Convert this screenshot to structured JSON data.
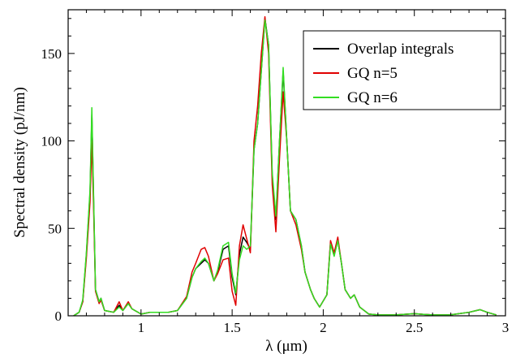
{
  "chart_data": {
    "type": "line",
    "xlabel": "λ (μm)",
    "ylabel": "Spectral density (pJ/nm)",
    "xlim": [
      0.6,
      3.0
    ],
    "ylim": [
      0,
      175
    ],
    "xticks": [
      1,
      1.5,
      2,
      2.5,
      3
    ],
    "xtick_labels": [
      "1",
      "1.5",
      "2",
      "2.5",
      "3"
    ],
    "yticks": [
      0,
      50,
      100,
      150
    ],
    "ytick_labels": [
      "0",
      "50",
      "100",
      "150"
    ],
    "grid": false,
    "legend_position": "top-right",
    "series": [
      {
        "name": "Overlap integrals",
        "color": "#000000",
        "points": [
          [
            0.63,
            0
          ],
          [
            0.66,
            2
          ],
          [
            0.68,
            8
          ],
          [
            0.7,
            35
          ],
          [
            0.72,
            70
          ],
          [
            0.73,
            115
          ],
          [
            0.74,
            65
          ],
          [
            0.75,
            15
          ],
          [
            0.77,
            8
          ],
          [
            0.78,
            10
          ],
          [
            0.8,
            3
          ],
          [
            0.85,
            2
          ],
          [
            0.88,
            6
          ],
          [
            0.9,
            3
          ],
          [
            0.93,
            7
          ],
          [
            0.95,
            4
          ],
          [
            1.0,
            1
          ],
          [
            1.05,
            2
          ],
          [
            1.1,
            2
          ],
          [
            1.15,
            2
          ],
          [
            1.2,
            3
          ],
          [
            1.25,
            10
          ],
          [
            1.28,
            22
          ],
          [
            1.3,
            27
          ],
          [
            1.33,
            30
          ],
          [
            1.35,
            32
          ],
          [
            1.37,
            30
          ],
          [
            1.4,
            20
          ],
          [
            1.42,
            25
          ],
          [
            1.45,
            38
          ],
          [
            1.48,
            40
          ],
          [
            1.5,
            22
          ],
          [
            1.52,
            12
          ],
          [
            1.54,
            35
          ],
          [
            1.56,
            45
          ],
          [
            1.58,
            42
          ],
          [
            1.6,
            38
          ],
          [
            1.62,
            95
          ],
          [
            1.64,
            110
          ],
          [
            1.66,
            140
          ],
          [
            1.68,
            170
          ],
          [
            1.7,
            155
          ],
          [
            1.72,
            80
          ],
          [
            1.74,
            55
          ],
          [
            1.76,
            100
          ],
          [
            1.78,
            140
          ],
          [
            1.8,
            100
          ],
          [
            1.82,
            60
          ],
          [
            1.85,
            55
          ],
          [
            1.88,
            40
          ],
          [
            1.9,
            25
          ],
          [
            1.93,
            15
          ],
          [
            1.95,
            10
          ],
          [
            1.98,
            5
          ],
          [
            2.02,
            12
          ],
          [
            2.04,
            42
          ],
          [
            2.06,
            35
          ],
          [
            2.08,
            43
          ],
          [
            2.1,
            30
          ],
          [
            2.12,
            15
          ],
          [
            2.15,
            10
          ],
          [
            2.17,
            12
          ],
          [
            2.2,
            5
          ],
          [
            2.25,
            1
          ],
          [
            2.3,
            0.5
          ],
          [
            2.4,
            0.5
          ],
          [
            2.5,
            1.2
          ],
          [
            2.55,
            0.8
          ],
          [
            2.6,
            0.5
          ],
          [
            2.7,
            0.6
          ],
          [
            2.8,
            2
          ],
          [
            2.86,
            3.5
          ],
          [
            2.9,
            2
          ],
          [
            2.95,
            0.5
          ]
        ]
      },
      {
        "name": "GQ n=5",
        "color": "#e00000",
        "points": [
          [
            0.63,
            0
          ],
          [
            0.66,
            2
          ],
          [
            0.68,
            8
          ],
          [
            0.7,
            33
          ],
          [
            0.72,
            65
          ],
          [
            0.73,
            100
          ],
          [
            0.74,
            60
          ],
          [
            0.75,
            14
          ],
          [
            0.77,
            7
          ],
          [
            0.78,
            9
          ],
          [
            0.8,
            3
          ],
          [
            0.85,
            2
          ],
          [
            0.88,
            8
          ],
          [
            0.9,
            3
          ],
          [
            0.93,
            8
          ],
          [
            0.95,
            4
          ],
          [
            1.0,
            1
          ],
          [
            1.05,
            2
          ],
          [
            1.1,
            2
          ],
          [
            1.15,
            2
          ],
          [
            1.2,
            3
          ],
          [
            1.25,
            11
          ],
          [
            1.28,
            25
          ],
          [
            1.3,
            30
          ],
          [
            1.33,
            38
          ],
          [
            1.35,
            39
          ],
          [
            1.37,
            34
          ],
          [
            1.4,
            20
          ],
          [
            1.42,
            24
          ],
          [
            1.45,
            32
          ],
          [
            1.48,
            33
          ],
          [
            1.5,
            14
          ],
          [
            1.52,
            6
          ],
          [
            1.54,
            40
          ],
          [
            1.56,
            52
          ],
          [
            1.58,
            44
          ],
          [
            1.6,
            36
          ],
          [
            1.62,
            100
          ],
          [
            1.64,
            120
          ],
          [
            1.66,
            150
          ],
          [
            1.68,
            171
          ],
          [
            1.7,
            150
          ],
          [
            1.72,
            75
          ],
          [
            1.74,
            48
          ],
          [
            1.76,
            90
          ],
          [
            1.78,
            128
          ],
          [
            1.8,
            100
          ],
          [
            1.82,
            60
          ],
          [
            1.85,
            52
          ],
          [
            1.88,
            38
          ],
          [
            1.9,
            25
          ],
          [
            1.93,
            15
          ],
          [
            1.95,
            10
          ],
          [
            1.98,
            5
          ],
          [
            2.02,
            12
          ],
          [
            2.04,
            43
          ],
          [
            2.06,
            36
          ],
          [
            2.08,
            45
          ],
          [
            2.1,
            30
          ],
          [
            2.12,
            15
          ],
          [
            2.15,
            10
          ],
          [
            2.17,
            12
          ],
          [
            2.2,
            5
          ],
          [
            2.25,
            1
          ],
          [
            2.3,
            0.5
          ],
          [
            2.4,
            0.5
          ],
          [
            2.5,
            1.2
          ],
          [
            2.55,
            0.8
          ],
          [
            2.6,
            0.5
          ],
          [
            2.7,
            0.6
          ],
          [
            2.8,
            2
          ],
          [
            2.86,
            3.5
          ],
          [
            2.9,
            2
          ],
          [
            2.95,
            0.5
          ]
        ]
      },
      {
        "name": "GQ n=6",
        "color": "#33dd22",
        "points": [
          [
            0.63,
            0
          ],
          [
            0.66,
            2
          ],
          [
            0.68,
            9
          ],
          [
            0.7,
            36
          ],
          [
            0.72,
            72
          ],
          [
            0.73,
            119
          ],
          [
            0.74,
            67
          ],
          [
            0.75,
            15
          ],
          [
            0.77,
            8
          ],
          [
            0.78,
            10
          ],
          [
            0.8,
            3
          ],
          [
            0.85,
            2
          ],
          [
            0.88,
            5
          ],
          [
            0.9,
            3
          ],
          [
            0.93,
            7
          ],
          [
            0.95,
            4
          ],
          [
            1.0,
            1
          ],
          [
            1.05,
            2
          ],
          [
            1.1,
            2
          ],
          [
            1.15,
            2
          ],
          [
            1.2,
            3
          ],
          [
            1.25,
            10
          ],
          [
            1.28,
            22
          ],
          [
            1.3,
            27
          ],
          [
            1.33,
            31
          ],
          [
            1.35,
            33
          ],
          [
            1.37,
            30
          ],
          [
            1.4,
            20
          ],
          [
            1.42,
            26
          ],
          [
            1.45,
            40
          ],
          [
            1.48,
            42
          ],
          [
            1.5,
            24
          ],
          [
            1.52,
            13
          ],
          [
            1.54,
            32
          ],
          [
            1.56,
            40
          ],
          [
            1.58,
            38
          ],
          [
            1.6,
            40
          ],
          [
            1.62,
            95
          ],
          [
            1.64,
            110
          ],
          [
            1.66,
            140
          ],
          [
            1.68,
            169
          ],
          [
            1.7,
            155
          ],
          [
            1.72,
            82
          ],
          [
            1.74,
            57
          ],
          [
            1.76,
            100
          ],
          [
            1.78,
            142
          ],
          [
            1.8,
            100
          ],
          [
            1.82,
            60
          ],
          [
            1.85,
            55
          ],
          [
            1.88,
            40
          ],
          [
            1.9,
            25
          ],
          [
            1.93,
            15
          ],
          [
            1.95,
            10
          ],
          [
            1.98,
            5
          ],
          [
            2.02,
            12
          ],
          [
            2.04,
            41
          ],
          [
            2.06,
            34
          ],
          [
            2.08,
            43
          ],
          [
            2.1,
            30
          ],
          [
            2.12,
            15
          ],
          [
            2.15,
            10
          ],
          [
            2.17,
            12
          ],
          [
            2.2,
            5
          ],
          [
            2.25,
            1
          ],
          [
            2.3,
            0.5
          ],
          [
            2.4,
            0.5
          ],
          [
            2.5,
            1.2
          ],
          [
            2.55,
            0.8
          ],
          [
            2.6,
            0.5
          ],
          [
            2.7,
            0.6
          ],
          [
            2.8,
            2
          ],
          [
            2.86,
            3.5
          ],
          [
            2.9,
            2
          ],
          [
            2.95,
            0.5
          ]
        ]
      }
    ]
  }
}
